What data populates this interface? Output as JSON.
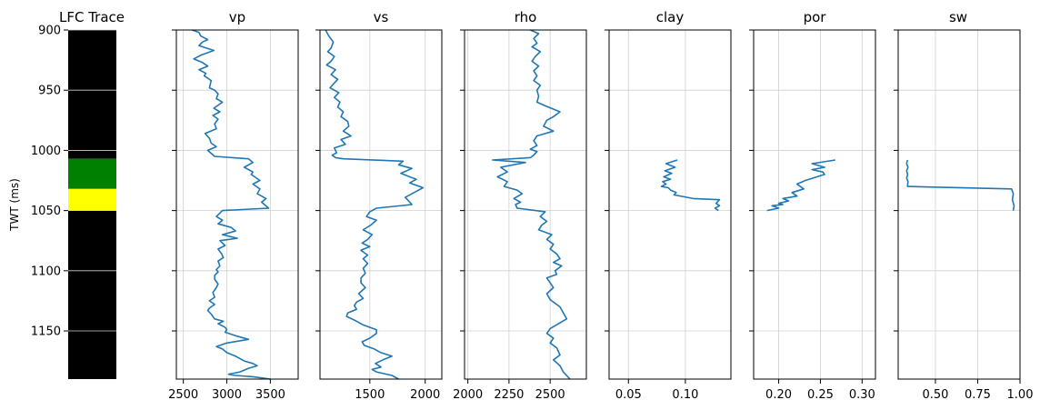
{
  "figure": {
    "background": "#ffffff"
  },
  "colors": {
    "curve": "#1f77b4",
    "grid": "#d0d0d0",
    "lfc_background": "#000000",
    "lfc_gas": "#008000",
    "lfc_brine": "#ffff00"
  },
  "chart_data": [
    {
      "type": "area",
      "title": "LFC Trace",
      "ylabel": "TWT (ms)",
      "ylim": [
        1190,
        900
      ],
      "yticks": [
        900,
        950,
        1000,
        1050,
        1100,
        1150
      ],
      "ytick_labels": [
        "900",
        "950",
        "1000",
        "1050",
        "1100",
        "1150"
      ],
      "grid": true,
      "intervals": [
        {
          "top": 900,
          "base": 1007,
          "color": "#000000"
        },
        {
          "top": 1007,
          "base": 1032,
          "color": "#008000"
        },
        {
          "top": 1032,
          "base": 1050,
          "color": "#ffff00"
        },
        {
          "top": 1050,
          "base": 1190,
          "color": "#000000"
        }
      ]
    },
    {
      "type": "line",
      "title": "vp",
      "xlim": [
        2420,
        3820
      ],
      "xticks": [
        2500,
        3000,
        3500
      ],
      "xtick_labels": [
        "2500",
        "3000",
        "3500"
      ],
      "ylim": [
        1190,
        900
      ],
      "yticks": [
        900,
        950,
        1000,
        1050,
        1100,
        1150
      ],
      "grid": true,
      "series": [
        {
          "x": [
            2600,
            2680,
            2700,
            2780,
            2720,
            2680,
            2850,
            2700,
            2620,
            2720,
            2780,
            2680,
            2760,
            2740,
            2820,
            2800,
            2860,
            2900,
            2880,
            2950,
            2850,
            2920,
            2840,
            2900,
            2860,
            2880,
            2750,
            2800,
            2820,
            2880,
            2780,
            2860,
            3250,
            3300,
            3200,
            3300,
            3280,
            3380,
            3300,
            3380,
            3350,
            3450,
            3400,
            3480,
            2950,
            2920,
            2880,
            2950,
            2900,
            3050,
            3100,
            2950,
            3120,
            2920,
            2980,
            2900,
            2940,
            2960,
            2900,
            2920,
            2880,
            2900,
            2860,
            2860,
            2900,
            2880,
            2840,
            2860,
            2800,
            2860,
            2800,
            2780,
            2820,
            2860,
            2960,
            2900,
            2980,
            3000,
            2980,
            3100,
            3250,
            3000,
            2880,
            2950,
            3000,
            3100,
            3200,
            3300,
            3350,
            3250,
            3150,
            3020,
            3100,
            3300,
            3400,
            3500
          ],
          "y": [
            900,
            902,
            905,
            908,
            910,
            913,
            917,
            921,
            924,
            927,
            930,
            933,
            936,
            938,
            942,
            948,
            950,
            953,
            957,
            960,
            965,
            968,
            971,
            974,
            978,
            982,
            986,
            990,
            994,
            997,
            1000,
            1005,
            1007,
            1010,
            1014,
            1018,
            1020,
            1025,
            1028,
            1032,
            1036,
            1040,
            1043,
            1048,
            1050,
            1052,
            1055,
            1058,
            1061,
            1064,
            1067,
            1070,
            1073,
            1075,
            1079,
            1082,
            1086,
            1089,
            1092,
            1096,
            1099,
            1101,
            1104,
            1107,
            1111,
            1114,
            1118,
            1122,
            1125,
            1128,
            1131,
            1133,
            1136,
            1140,
            1142,
            1144,
            1147,
            1149,
            1151,
            1154,
            1157,
            1160,
            1163,
            1165,
            1168,
            1171,
            1175,
            1177,
            1179,
            1181,
            1184,
            1186,
            1187,
            1188,
            1189,
            1190
          ]
        }
      ]
    },
    {
      "type": "line",
      "title": "vs",
      "xlim": [
        1050,
        2150
      ],
      "xticks": [
        1500,
        2000
      ],
      "xtick_labels": [
        "1500",
        "2000"
      ],
      "ylim": [
        1190,
        900
      ],
      "yticks": [
        900,
        950,
        1000,
        1050,
        1100,
        1150
      ],
      "grid": true,
      "series": [
        {
          "x": [
            1100,
            1130,
            1170,
            1150,
            1120,
            1180,
            1150,
            1110,
            1190,
            1150,
            1210,
            1180,
            1140,
            1220,
            1180,
            1230,
            1210,
            1260,
            1240,
            1300,
            1310,
            1260,
            1330,
            1240,
            1280,
            1180,
            1200,
            1160,
            1190,
            1260,
            1800,
            1760,
            1880,
            1780,
            1860,
            1920,
            1860,
            1980,
            1900,
            1820,
            1880,
            1560,
            1500,
            1470,
            1560,
            1510,
            1440,
            1520,
            1480,
            1430,
            1500,
            1420,
            1480,
            1440,
            1480,
            1440,
            1460,
            1420,
            1420,
            1460,
            1400,
            1440,
            1380,
            1360,
            1380,
            1300,
            1290,
            1360,
            1440,
            1560,
            1560,
            1500,
            1430,
            1450,
            1540,
            1600,
            1700,
            1620,
            1550,
            1600,
            1520,
            1560,
            1700,
            1760
          ],
          "y": [
            900,
            905,
            910,
            915,
            918,
            922,
            926,
            929,
            933,
            937,
            941,
            944,
            948,
            952,
            956,
            960,
            964,
            968,
            972,
            976,
            980,
            984,
            988,
            991,
            995,
            998,
            1002,
            1004,
            1006,
            1007,
            1009,
            1012,
            1015,
            1019,
            1022,
            1024,
            1027,
            1031,
            1035,
            1039,
            1045,
            1048,
            1051,
            1055,
            1058,
            1062,
            1066,
            1070,
            1074,
            1077,
            1080,
            1083,
            1087,
            1090,
            1094,
            1098,
            1102,
            1106,
            1110,
            1114,
            1119,
            1123,
            1126,
            1129,
            1132,
            1135,
            1138,
            1141,
            1145,
            1149,
            1152,
            1156,
            1159,
            1162,
            1165,
            1168,
            1171,
            1174,
            1177,
            1180,
            1182,
            1184,
            1187,
            1190
          ]
        }
      ]
    },
    {
      "type": "line",
      "title": "rho",
      "xlim": [
        1980,
        2720
      ],
      "xticks": [
        2000,
        2250,
        2500
      ],
      "xtick_labels": [
        "2000",
        "2250",
        "2500"
      ],
      "ylim": [
        1190,
        900
      ],
      "yticks": [
        900,
        950,
        1000,
        1050,
        1100,
        1150
      ],
      "grid": true,
      "series": [
        {
          "x": [
            2380,
            2430,
            2400,
            2420,
            2390,
            2440,
            2410,
            2390,
            2430,
            2400,
            2420,
            2400,
            2440,
            2420,
            2430,
            2420,
            2470,
            2560,
            2520,
            2480,
            2460,
            2520,
            2420,
            2400,
            2420,
            2380,
            2420,
            2400,
            2380,
            2150,
            2350,
            2200,
            2240,
            2180,
            2240,
            2220,
            2300,
            2330,
            2280,
            2320,
            2290,
            2300,
            2470,
            2440,
            2480,
            2450,
            2430,
            2510,
            2480,
            2520,
            2500,
            2540,
            2560,
            2520,
            2570,
            2530,
            2540,
            2480,
            2500,
            2520,
            2480,
            2500,
            2560,
            2600,
            2500,
            2480,
            2520,
            2500,
            2540,
            2560,
            2520,
            2560,
            2580,
            2620
          ],
          "y": [
            900,
            903,
            907,
            911,
            914,
            918,
            922,
            926,
            930,
            934,
            938,
            942,
            946,
            950,
            955,
            960,
            963,
            968,
            972,
            975,
            980,
            984,
            988,
            992,
            996,
            999,
            1001,
            1004,
            1006,
            1008,
            1010,
            1014,
            1018,
            1022,
            1026,
            1030,
            1033,
            1036,
            1040,
            1043,
            1045,
            1048,
            1051,
            1055,
            1059,
            1062,
            1066,
            1070,
            1074,
            1078,
            1082,
            1086,
            1090,
            1093,
            1096,
            1100,
            1103,
            1106,
            1110,
            1114,
            1119,
            1124,
            1130,
            1140,
            1148,
            1152,
            1156,
            1160,
            1164,
            1170,
            1174,
            1179,
            1184,
            1190
          ]
        }
      ]
    },
    {
      "type": "line",
      "title": "clay",
      "xlim": [
        0.033,
        0.14
      ],
      "xticks": [
        0.05,
        0.1
      ],
      "xtick_labels": [
        "0.05",
        "0.10"
      ],
      "ylim": [
        1190,
        900
      ],
      "yticks": [
        900,
        950,
        1000,
        1050,
        1100,
        1150
      ],
      "grid": true,
      "series": [
        {
          "x": [
            0.093,
            0.083,
            0.091,
            0.082,
            0.088,
            0.081,
            0.087,
            0.08,
            0.083,
            0.079,
            0.085,
            0.087,
            0.092,
            0.09,
            0.107,
            0.13,
            0.127,
            0.13,
            0.126,
            0.129
          ],
          "y": [
            1008,
            1011,
            1014,
            1017,
            1019,
            1022,
            1024,
            1026,
            1028,
            1030,
            1031,
            1033,
            1035,
            1037,
            1040,
            1041,
            1044,
            1046,
            1048,
            1050
          ]
        }
      ]
    },
    {
      "type": "line",
      "title": "por",
      "xlim": [
        0.17,
        0.316
      ],
      "xticks": [
        0.2,
        0.25,
        0.3
      ],
      "xtick_labels": [
        "0.20",
        "0.25",
        "0.30"
      ],
      "ylim": [
        1190,
        900
      ],
      "yticks": [
        900,
        950,
        1000,
        1050,
        1100,
        1150
      ],
      "grid": true,
      "series": [
        {
          "x": [
            0.268,
            0.24,
            0.255,
            0.24,
            0.253,
            0.255,
            0.232,
            0.222,
            0.23,
            0.216,
            0.222,
            0.205,
            0.212,
            0.2,
            0.205,
            0.192,
            0.2,
            0.186
          ],
          "y": [
            1008,
            1011,
            1014,
            1016,
            1018,
            1020,
            1025,
            1028,
            1032,
            1035,
            1038,
            1040,
            1042,
            1044,
            1045,
            1046,
            1048,
            1050
          ]
        }
      ]
    },
    {
      "type": "line",
      "title": "sw",
      "xlim": [
        0.28,
        1.0
      ],
      "xticks": [
        0.5,
        0.75,
        1.0
      ],
      "xtick_labels": [
        "0.50",
        "0.75",
        "1.00"
      ],
      "ylim": [
        1190,
        900
      ],
      "yticks": [
        900,
        950,
        1000,
        1050,
        1100,
        1150
      ],
      "grid": true,
      "series": [
        {
          "x": [
            0.335,
            0.33,
            0.338,
            0.33,
            0.336,
            0.33,
            0.338,
            0.335,
            0.95,
            0.96,
            0.955,
            0.965,
            0.96
          ],
          "y": [
            1008,
            1011,
            1014,
            1017,
            1020,
            1023,
            1026,
            1030,
            1032,
            1036,
            1041,
            1046,
            1050
          ]
        }
      ]
    }
  ]
}
